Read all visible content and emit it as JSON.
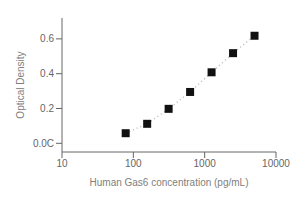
{
  "chart_data": {
    "type": "line",
    "xlabel": "Human Gas6 concentration (pg/mL)",
    "ylabel": "Optical Density",
    "x": [
      78.125,
      156.25,
      312.5,
      625,
      1250,
      2500,
      5000
    ],
    "series": [
      {
        "type": "line",
        "color": "#bbbbbb",
        "line_style": "dotted",
        "values": [
          0.058,
          0.112,
          0.198,
          0.295,
          0.408,
          0.518,
          0.618
        ]
      },
      {
        "type": "scatter",
        "color": "#111111",
        "marker": "square",
        "values": [
          0.058,
          0.112,
          0.198,
          0.295,
          0.408,
          0.518,
          0.618
        ]
      }
    ],
    "log": "x",
    "xlim": [
      10,
      10000
    ],
    "ylim": [
      -0.05,
      0.72
    ],
    "xticks": [
      10,
      100,
      1000,
      10000
    ],
    "yticks": [
      {
        "value": 0.0,
        "label": "0.0C"
      },
      0.2,
      0.4,
      0.6
    ],
    "grid": false
  }
}
